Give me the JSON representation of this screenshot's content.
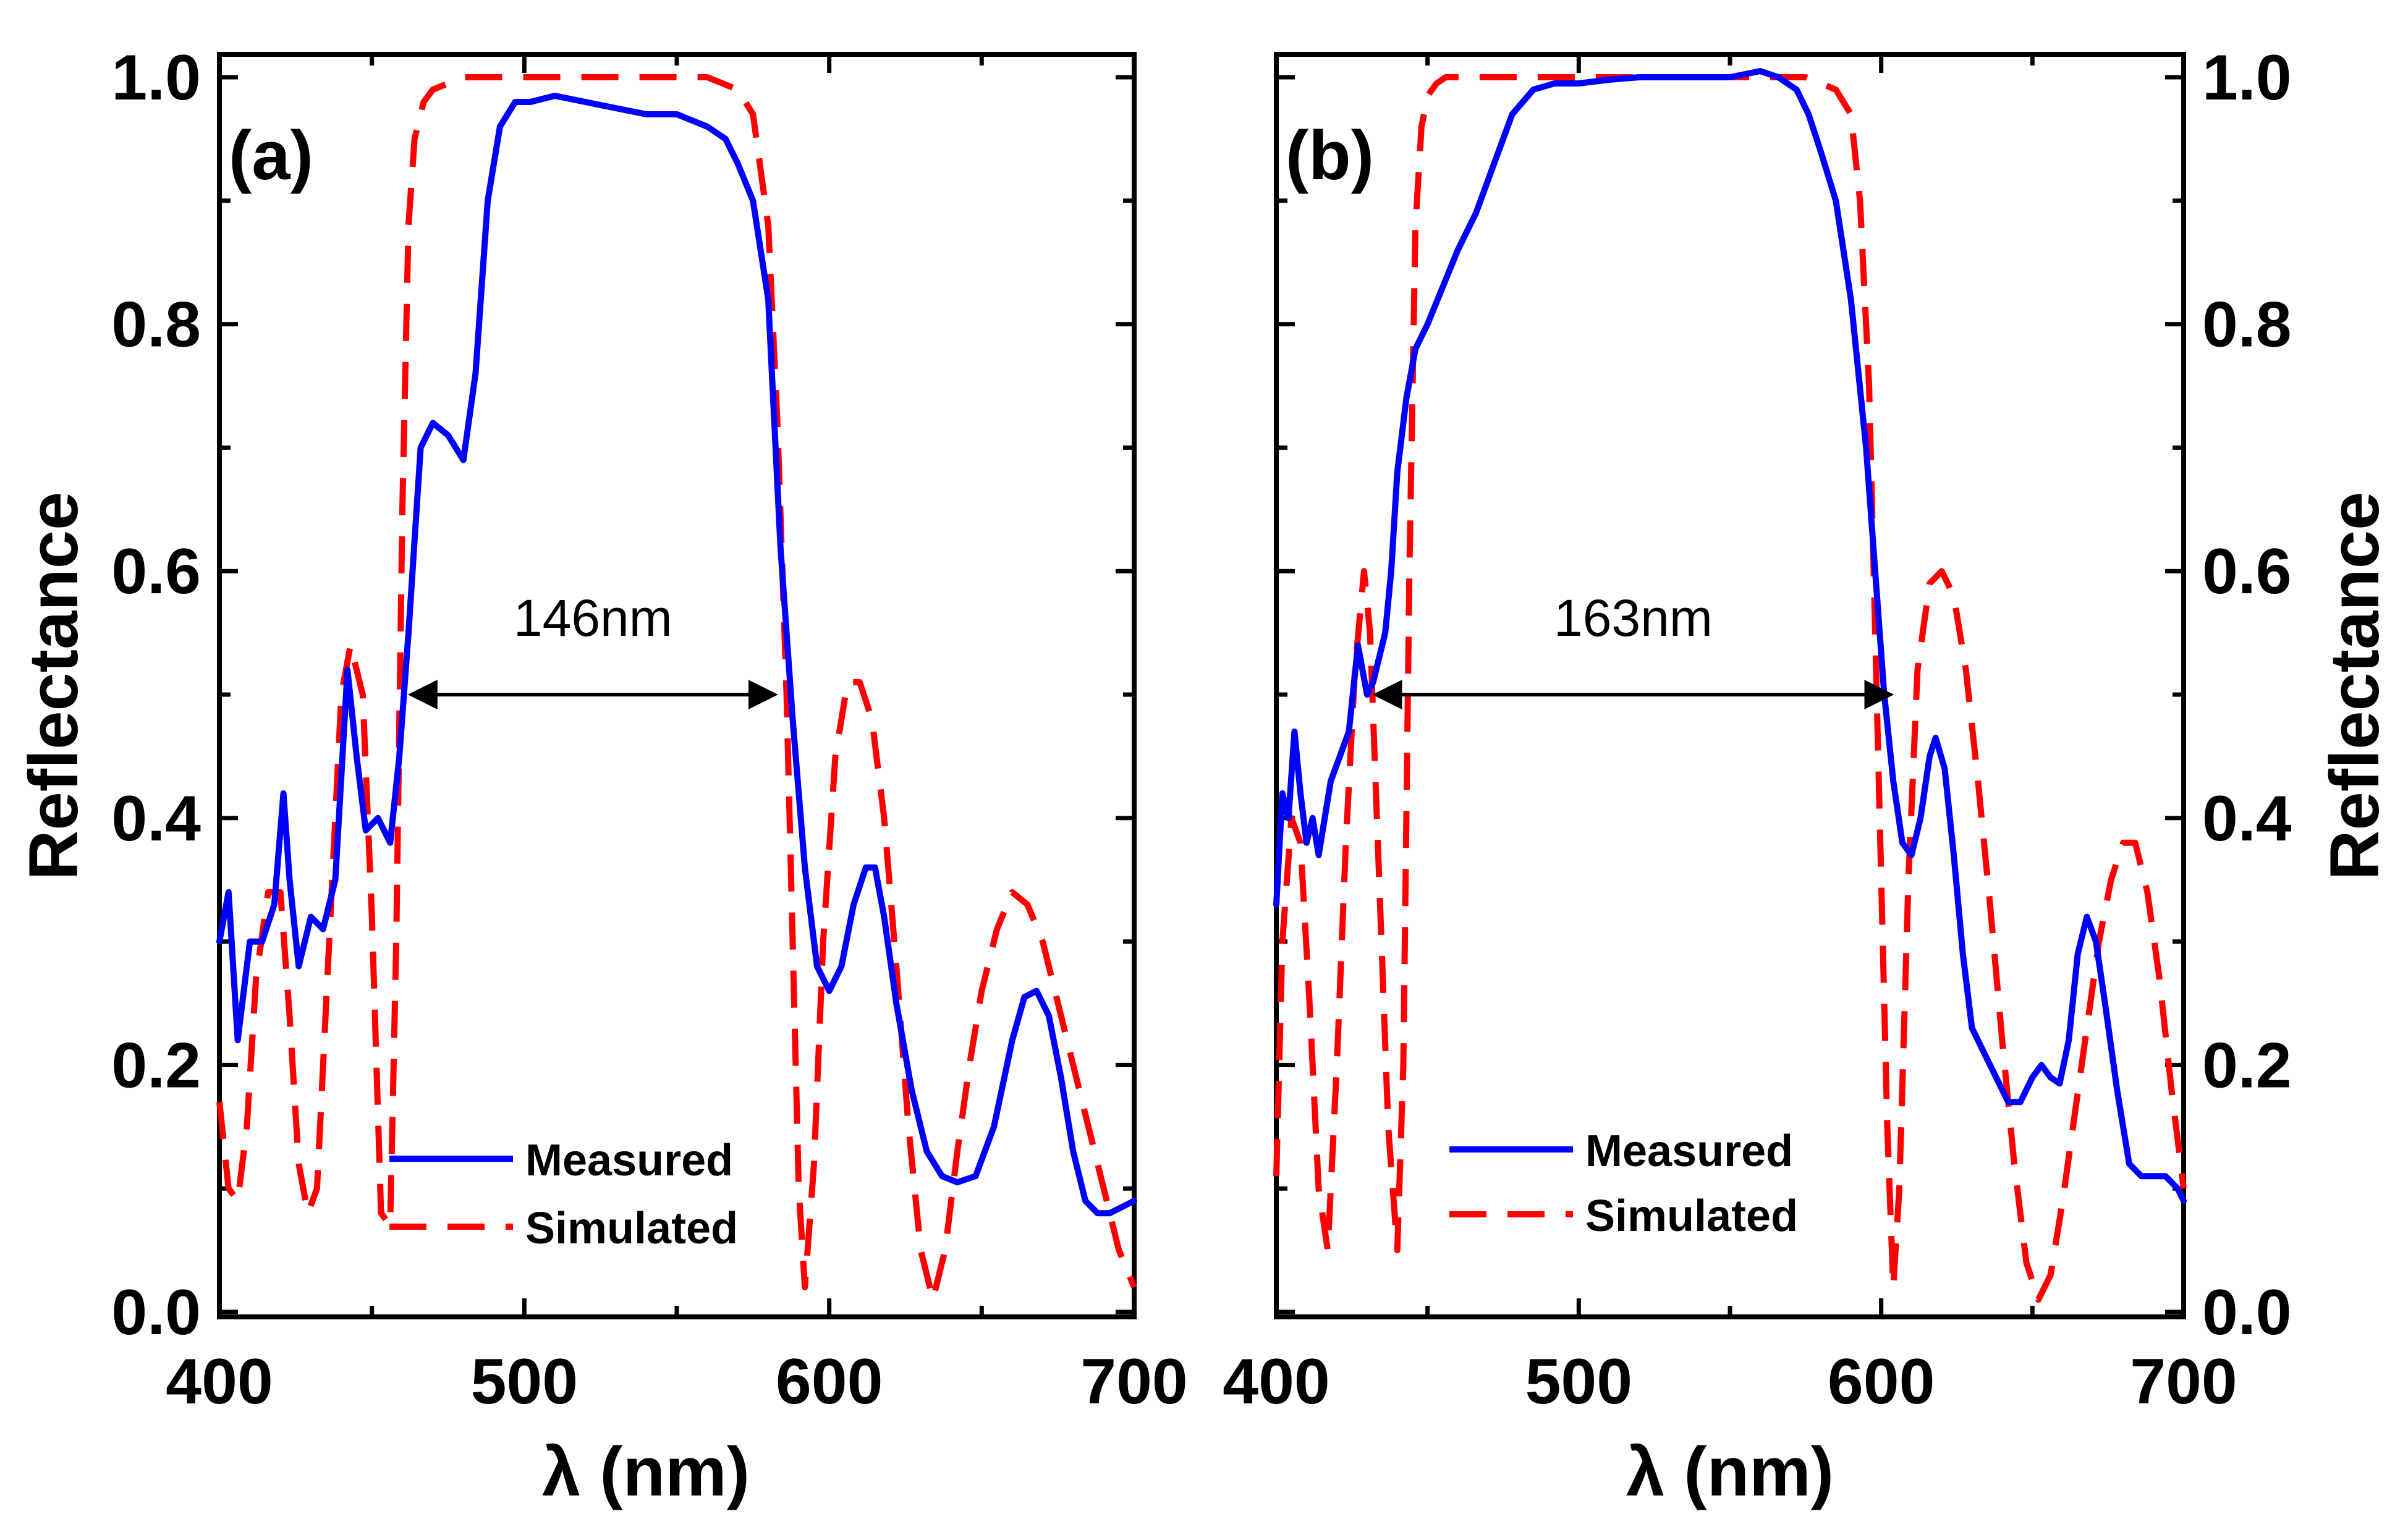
{
  "chart_data": [
    {
      "type": "line",
      "panel_label": "(a)",
      "xlabel": "λ (nm)",
      "ylabel": "Reflectance",
      "ylabel_side": "left",
      "xlim": [
        400,
        700
      ],
      "ylim": [
        0.0,
        1.0
      ],
      "xticks": [
        400,
        500,
        600,
        700
      ],
      "xtick_labels": [
        "400",
        "500",
        "600",
        "700"
      ],
      "yticks": [
        0.0,
        0.2,
        0.4,
        0.6,
        0.8,
        1.0
      ],
      "ytick_labels": [
        "0.0",
        "0.2",
        "0.4",
        "0.6",
        "0.8",
        "1.0"
      ],
      "legend": {
        "position": "lower-center",
        "entries": [
          "Measured",
          "Simulated"
        ]
      },
      "annotation": {
        "text": "146nm",
        "x_start": 463,
        "x_end": 582,
        "y": 0.5
      },
      "series": [
        {
          "name": "Measured",
          "color": "#0000ff",
          "style": "solid",
          "x": [
            400,
            403,
            406,
            410,
            414,
            418,
            421,
            423,
            426,
            430,
            434,
            438,
            442,
            445,
            448,
            452,
            456,
            459,
            462,
            466,
            470,
            475,
            480,
            484,
            488,
            492,
            497,
            502,
            510,
            520,
            530,
            540,
            550,
            560,
            566,
            570,
            575,
            580,
            584,
            588,
            592,
            596,
            600,
            604,
            608,
            612,
            615,
            618,
            622,
            627,
            632,
            637,
            642,
            648,
            654,
            660,
            664,
            668,
            672,
            676,
            680,
            684,
            688,
            692,
            696,
            700
          ],
          "y": [
            0.3,
            0.34,
            0.22,
            0.3,
            0.3,
            0.33,
            0.42,
            0.35,
            0.28,
            0.32,
            0.31,
            0.35,
            0.52,
            0.45,
            0.39,
            0.4,
            0.38,
            0.45,
            0.55,
            0.7,
            0.72,
            0.71,
            0.69,
            0.76,
            0.9,
            0.96,
            0.98,
            0.98,
            0.985,
            0.98,
            0.975,
            0.97,
            0.97,
            0.96,
            0.95,
            0.93,
            0.9,
            0.82,
            0.62,
            0.48,
            0.36,
            0.28,
            0.26,
            0.28,
            0.33,
            0.36,
            0.36,
            0.32,
            0.25,
            0.18,
            0.13,
            0.11,
            0.105,
            0.11,
            0.15,
            0.22,
            0.255,
            0.26,
            0.24,
            0.19,
            0.13,
            0.09,
            0.08,
            0.08,
            0.085,
            0.09
          ]
        },
        {
          "name": "Simulated",
          "color": "#ff0000",
          "style": "dashed",
          "x": [
            400,
            403,
            406,
            409,
            412,
            416,
            420,
            423,
            426,
            429,
            432,
            436,
            440,
            443,
            447,
            450,
            453,
            456,
            458,
            460,
            462,
            464,
            467,
            470,
            475,
            480,
            490,
            500,
            520,
            540,
            560,
            565,
            570,
            575,
            580,
            583,
            586,
            588,
            590,
            592,
            595,
            598,
            602,
            606,
            610,
            614,
            618,
            622,
            626,
            630,
            634,
            638,
            642,
            646,
            650,
            655,
            660,
            665,
            670,
            675,
            680,
            685,
            690,
            695,
            700
          ],
          "y": [
            0.17,
            0.1,
            0.09,
            0.15,
            0.27,
            0.34,
            0.34,
            0.24,
            0.12,
            0.08,
            0.1,
            0.3,
            0.5,
            0.54,
            0.5,
            0.32,
            0.08,
            0.07,
            0.3,
            0.65,
            0.88,
            0.95,
            0.98,
            0.99,
            0.995,
            1.0,
            1.0,
            1.0,
            1.0,
            1.0,
            1.0,
            0.995,
            0.99,
            0.97,
            0.88,
            0.72,
            0.5,
            0.3,
            0.1,
            0.02,
            0.12,
            0.3,
            0.45,
            0.51,
            0.51,
            0.48,
            0.4,
            0.28,
            0.15,
            0.05,
            0.01,
            0.05,
            0.13,
            0.2,
            0.26,
            0.31,
            0.34,
            0.33,
            0.3,
            0.25,
            0.2,
            0.15,
            0.1,
            0.05,
            0.02
          ]
        }
      ]
    },
    {
      "type": "line",
      "panel_label": "(b)",
      "xlabel": "λ (nm)",
      "ylabel": "Reflectance",
      "ylabel_side": "right",
      "xlim": [
        400,
        700
      ],
      "ylim": [
        0.0,
        1.0
      ],
      "xticks": [
        400,
        500,
        600,
        700
      ],
      "xtick_labels": [
        "400",
        "500",
        "600",
        "700"
      ],
      "yticks": [
        0.0,
        0.2,
        0.4,
        0.6,
        0.8,
        1.0
      ],
      "ytick_labels": [
        "0.0",
        "0.2",
        "0.4",
        "0.6",
        "0.8",
        "1.0"
      ],
      "legend": {
        "position": "lower-center",
        "entries": [
          "Measured",
          "Simulated"
        ]
      },
      "annotation": {
        "text": "163nm",
        "x_start": 433,
        "x_end": 603,
        "y": 0.5
      },
      "series": [
        {
          "name": "Measured",
          "color": "#0000ff",
          "style": "solid",
          "x": [
            400,
            402,
            404,
            406,
            408,
            410,
            412,
            414,
            416,
            418,
            421,
            424,
            427,
            430,
            432,
            434,
            436,
            438,
            440,
            443,
            446,
            450,
            455,
            460,
            466,
            472,
            478,
            485,
            492,
            500,
            510,
            520,
            530,
            540,
            550,
            560,
            566,
            572,
            576,
            580,
            585,
            590,
            595,
            598,
            601,
            604,
            607,
            610,
            613,
            616,
            618,
            621,
            624,
            627,
            630,
            634,
            638,
            642,
            646,
            650,
            653,
            656,
            659,
            662,
            665,
            668,
            671,
            674,
            678,
            682,
            686,
            690,
            694,
            698,
            700
          ],
          "y": [
            0.33,
            0.42,
            0.4,
            0.47,
            0.42,
            0.38,
            0.4,
            0.37,
            0.4,
            0.43,
            0.45,
            0.47,
            0.54,
            0.5,
            0.51,
            0.53,
            0.55,
            0.6,
            0.68,
            0.74,
            0.78,
            0.8,
            0.83,
            0.86,
            0.89,
            0.93,
            0.97,
            0.99,
            0.995,
            0.995,
            0.998,
            1.0,
            1.0,
            1.0,
            1.0,
            1.005,
            1.0,
            0.99,
            0.97,
            0.94,
            0.9,
            0.82,
            0.7,
            0.6,
            0.5,
            0.43,
            0.38,
            0.37,
            0.4,
            0.45,
            0.465,
            0.44,
            0.37,
            0.29,
            0.23,
            0.21,
            0.19,
            0.17,
            0.17,
            0.19,
            0.2,
            0.19,
            0.185,
            0.22,
            0.29,
            0.32,
            0.3,
            0.25,
            0.18,
            0.12,
            0.11,
            0.11,
            0.11,
            0.1,
            0.09
          ]
        },
        {
          "name": "Simulated",
          "color": "#ff0000",
          "style": "dashed",
          "x": [
            400,
            402,
            405,
            408,
            411,
            414,
            417,
            420,
            423,
            426,
            429,
            431,
            434,
            437,
            440,
            442,
            444,
            446,
            448,
            450,
            453,
            456,
            460,
            470,
            500,
            530,
            560,
            575,
            585,
            590,
            593,
            596,
            598,
            600,
            602,
            604,
            606,
            609,
            612,
            616,
            620,
            624,
            628,
            632,
            636,
            640,
            644,
            648,
            652,
            656,
            660,
            664,
            668,
            672,
            676,
            680,
            684,
            688,
            692,
            696,
            700
          ],
          "y": [
            0.11,
            0.3,
            0.4,
            0.38,
            0.25,
            0.1,
            0.05,
            0.2,
            0.38,
            0.52,
            0.6,
            0.55,
            0.35,
            0.15,
            0.05,
            0.2,
            0.6,
            0.88,
            0.96,
            0.985,
            0.995,
            1.0,
            1.0,
            1.0,
            1.0,
            1.0,
            1.0,
            1.0,
            0.99,
            0.97,
            0.9,
            0.75,
            0.55,
            0.35,
            0.15,
            0.02,
            0.1,
            0.35,
            0.52,
            0.59,
            0.6,
            0.58,
            0.52,
            0.43,
            0.33,
            0.22,
            0.12,
            0.04,
            0.01,
            0.03,
            0.09,
            0.16,
            0.23,
            0.3,
            0.35,
            0.38,
            0.38,
            0.34,
            0.27,
            0.18,
            0.1
          ]
        }
      ]
    }
  ]
}
